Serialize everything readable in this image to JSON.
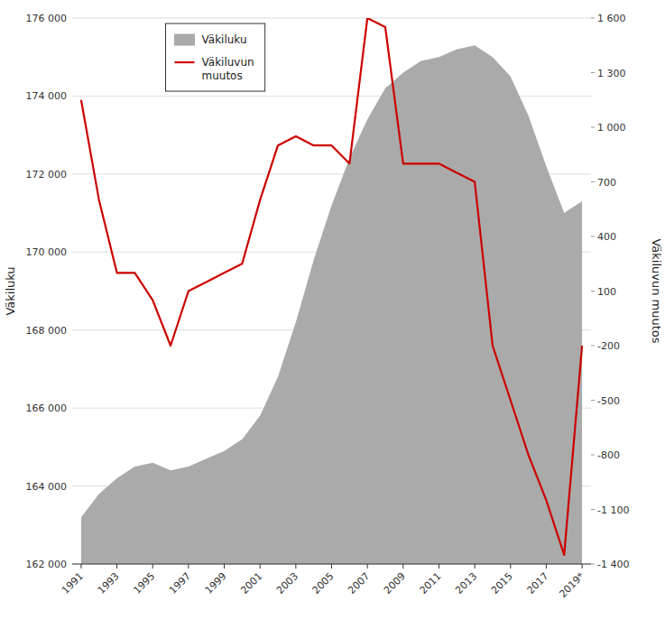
{
  "chart_data": {
    "type": "line",
    "x": [
      1991,
      1992,
      1993,
      1994,
      1995,
      1996,
      1997,
      1998,
      1999,
      2000,
      2001,
      2002,
      2003,
      2004,
      2005,
      2006,
      2007,
      2008,
      2009,
      2010,
      2011,
      2012,
      2013,
      2014,
      2015,
      2016,
      2017,
      2018,
      2019
    ],
    "series": [
      {
        "name": "Väkiluku",
        "type": "area",
        "color": "#aaaaaa",
        "values": [
          163200,
          163800,
          164200,
          164500,
          164600,
          164400,
          164500,
          164700,
          164900,
          165200,
          165800,
          166800,
          168200,
          169800,
          171200,
          172400,
          173400,
          174200,
          174600,
          174900,
          175000,
          175200,
          175300,
          175000,
          174500,
          173500,
          172200,
          171000,
          171300
        ]
      },
      {
        "name": "Väkiluvun\nmuutos",
        "type": "line",
        "color": "#cc0000",
        "axis": "y2",
        "values": [
          1150,
          600,
          200,
          200,
          50,
          -200,
          100,
          150,
          200,
          250,
          600,
          900,
          950,
          900,
          900,
          800,
          1600,
          1550,
          800,
          800,
          800,
          750,
          700,
          -200,
          -500,
          -800,
          -1050,
          -1350,
          -200
        ]
      }
    ],
    "y_label": "Väkiluku",
    "y2_label": "Väkiluvun muutos",
    "xlim": [
      1990.5,
      2019.5
    ],
    "xticks": [
      1991,
      1993,
      1995,
      1997,
      1999,
      2001,
      2003,
      2005,
      2007,
      2009,
      2011,
      2013,
      2015,
      2017,
      {
        "value": 2019,
        "label": "2019*"
      }
    ],
    "ylim": [
      162000,
      176000
    ],
    "yticks": [
      {
        "value": 162000,
        "label": "162 000"
      },
      {
        "value": 164000,
        "label": "164 000"
      },
      {
        "value": 166000,
        "label": "166 000"
      },
      {
        "value": 168000,
        "label": "168 000"
      },
      {
        "value": 170000,
        "label": "170 000"
      },
      {
        "value": 172000,
        "label": "172 000"
      },
      {
        "value": 174000,
        "label": "174 000"
      },
      {
        "value": 176000,
        "label": "176 000"
      }
    ],
    "y2lim": [
      -1400,
      1600
    ],
    "y2ticks": [
      {
        "value": -1400,
        "label": "-1 400"
      },
      {
        "value": -1100,
        "label": "-1 100"
      },
      -800,
      -500,
      -200,
      100,
      400,
      700,
      {
        "value": 1000,
        "label": "1 000"
      },
      {
        "value": 1300,
        "label": "1 300"
      },
      {
        "value": 1600,
        "label": "1 600"
      }
    ],
    "grid": true,
    "legend": "upper left"
  }
}
